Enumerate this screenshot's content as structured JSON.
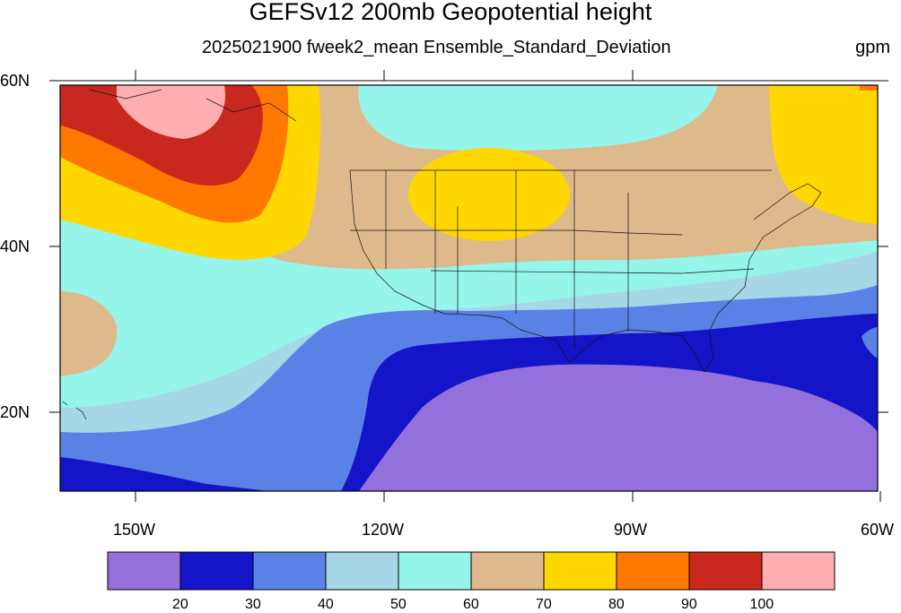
{
  "title": "GEFSv12 200mb Geopotential height",
  "subtitle": "2025021900 fweek2_mean Ensemble_Standard_Deviation",
  "units": "gpm",
  "lat_ticks": [
    "60N",
    "40N",
    "20N"
  ],
  "lon_ticks": [
    "150W",
    "120W",
    "90W",
    "60W"
  ],
  "colorbar": {
    "levels": [
      "20",
      "30",
      "40",
      "50",
      "60",
      "70",
      "80",
      "90",
      "100"
    ],
    "colors": [
      "#9370db",
      "#1414c8",
      "#5a82e6",
      "#a5d7e6",
      "#96f5eb",
      "#deb98c",
      "#ffd700",
      "#ff7800",
      "#c8281e",
      "#ffafaf"
    ]
  }
}
